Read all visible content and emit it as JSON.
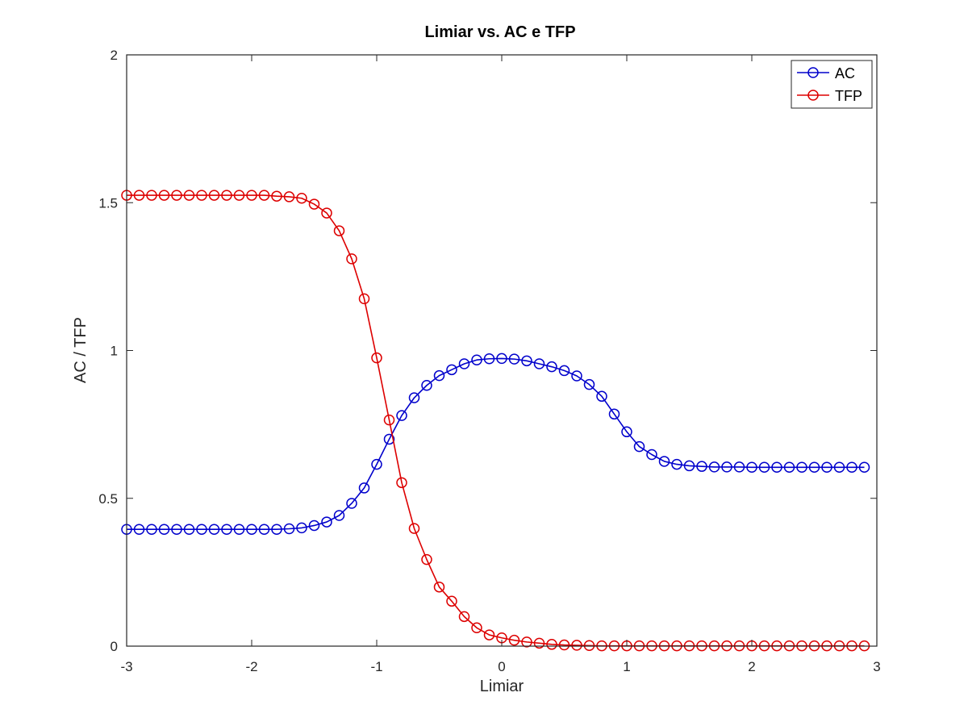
{
  "chart_data": {
    "type": "line",
    "title": "Limiar vs. AC e TFP",
    "xlabel": "Limiar",
    "ylabel": "AC / TFP",
    "xlim": [
      -3,
      3
    ],
    "ylim": [
      0,
      2
    ],
    "xticks": [
      -3,
      -2,
      -1,
      0,
      1,
      2,
      3
    ],
    "xtick_labels": [
      "-3",
      "-2",
      "-1",
      "0",
      "1",
      "2",
      "3"
    ],
    "yticks": [
      0,
      0.5,
      1,
      1.5,
      2
    ],
    "ytick_labels": [
      "0",
      "0.5",
      "1",
      "1.5",
      "2"
    ],
    "grid": false,
    "legend_position": "top-right",
    "marker": "circle",
    "x": [
      -3.0,
      -2.9,
      -2.8,
      -2.7,
      -2.6,
      -2.5,
      -2.4,
      -2.3,
      -2.2,
      -2.1,
      -2.0,
      -1.9,
      -1.8,
      -1.7,
      -1.6,
      -1.5,
      -1.4,
      -1.3,
      -1.2,
      -1.1,
      -1.0,
      -0.9,
      -0.8,
      -0.7,
      -0.6,
      -0.5,
      -0.4,
      -0.3,
      -0.2,
      -0.1,
      0.0,
      0.1,
      0.2,
      0.3,
      0.4,
      0.5,
      0.6,
      0.7,
      0.8,
      0.9,
      1.0,
      1.1,
      1.2,
      1.3,
      1.4,
      1.5,
      1.6,
      1.7,
      1.8,
      1.9,
      2.0,
      2.1,
      2.2,
      2.3,
      2.4,
      2.5,
      2.6,
      2.7,
      2.8,
      2.9
    ],
    "series": [
      {
        "name": "AC",
        "color": "#0000cc",
        "values": [
          0.395,
          0.395,
          0.395,
          0.395,
          0.395,
          0.395,
          0.395,
          0.395,
          0.395,
          0.395,
          0.395,
          0.395,
          0.395,
          0.397,
          0.4,
          0.408,
          0.42,
          0.442,
          0.483,
          0.535,
          0.615,
          0.7,
          0.78,
          0.84,
          0.882,
          0.915,
          0.935,
          0.955,
          0.968,
          0.972,
          0.973,
          0.971,
          0.965,
          0.955,
          0.945,
          0.932,
          0.914,
          0.885,
          0.845,
          0.785,
          0.725,
          0.675,
          0.648,
          0.625,
          0.615,
          0.61,
          0.608,
          0.606,
          0.606,
          0.606,
          0.605,
          0.605,
          0.605,
          0.605,
          0.605,
          0.605,
          0.605,
          0.605,
          0.605,
          0.605
        ]
      },
      {
        "name": "TFP",
        "color": "#dd0000",
        "values": [
          1.525,
          1.525,
          1.525,
          1.525,
          1.525,
          1.525,
          1.525,
          1.525,
          1.525,
          1.525,
          1.525,
          1.525,
          1.522,
          1.52,
          1.515,
          1.495,
          1.465,
          1.405,
          1.31,
          1.175,
          0.975,
          0.765,
          0.553,
          0.398,
          0.293,
          0.2,
          0.152,
          0.1,
          0.062,
          0.038,
          0.028,
          0.02,
          0.014,
          0.01,
          0.006,
          0.004,
          0.003,
          0.002,
          0.001,
          0.001,
          0.001,
          0.001,
          0.001,
          0.001,
          0.001,
          0.001,
          0.001,
          0.001,
          0.001,
          0.001,
          0.001,
          0.001,
          0.001,
          0.001,
          0.001,
          0.001,
          0.001,
          0.001,
          0.001,
          0.001
        ]
      }
    ]
  }
}
